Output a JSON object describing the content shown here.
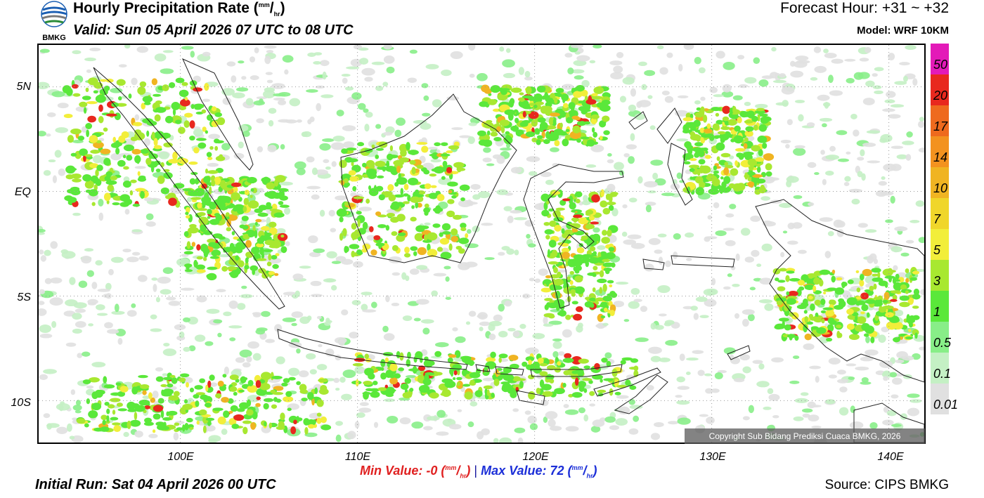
{
  "header": {
    "logo_text": "BMKG",
    "title": "Hourly Precipitation Rate (",
    "title_unit_sup": "mm",
    "title_unit_sub": "hr",
    "title_close": ")",
    "valid": "Valid: Sun 05 April 2026 07 UTC to 08 UTC",
    "forecast_hour": "Forecast Hour: +31 ~ +32",
    "model": "Model: WRF 10KM"
  },
  "map": {
    "lat_labels": [
      "5N",
      "EQ",
      "5S",
      "10S"
    ],
    "lon_labels": [
      "100E",
      "110E",
      "120E",
      "130E",
      "140E"
    ],
    "lon_range": [
      92,
      142
    ],
    "lat_range": [
      -12,
      7
    ],
    "copyright": "Copyright Sub Bidang Prediksi Cuaca BMKG, 2026"
  },
  "legend": {
    "labels": [
      "50",
      "20",
      "17",
      "14",
      "10",
      "7",
      "5",
      "3",
      "1",
      "0.5",
      "0.1",
      "0.01"
    ],
    "colors": [
      "#e31ab8",
      "#e8281e",
      "#ee6a1e",
      "#f3921f",
      "#f0b422",
      "#f0d62a",
      "#f2ee3a",
      "#a8e830",
      "#5ae83a",
      "#88ee88",
      "#c4f0c4",
      "#e0e0e0"
    ]
  },
  "stats": {
    "min_label": "Min Value:  -0 (",
    "min_sup": "mm",
    "min_sub": "hr",
    "close": ")",
    "separator": "|",
    "max_label": "Max Value:  72 (",
    "max_sup": "mm",
    "max_sub": "hr"
  },
  "footer": {
    "initial_run": "Initial Run: Sat 04 April 2026 00 UTC",
    "source": "Source: CIPS BMKG"
  }
}
